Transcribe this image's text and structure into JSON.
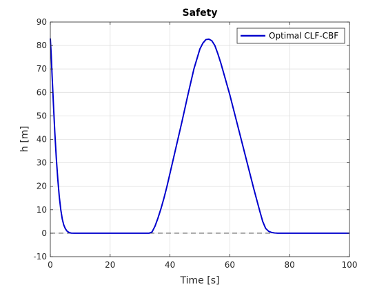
{
  "chart_data": {
    "type": "line",
    "title": "Safety",
    "xlabel": "Time [s]",
    "ylabel": "h [m]",
    "xlim": [
      0,
      100
    ],
    "ylim": [
      -10,
      90
    ],
    "xticks": [
      0,
      20,
      40,
      60,
      80,
      100
    ],
    "yticks": [
      -10,
      0,
      10,
      20,
      30,
      40,
      50,
      60,
      70,
      80,
      90
    ],
    "grid": true,
    "legend_position": "top-right",
    "reference_line": {
      "y": 0,
      "style": "dashed",
      "color": "#404040"
    },
    "series": [
      {
        "name": "Optimal CLF-CBF",
        "color": "#0000cd",
        "x": [
          0,
          0.3,
          0.6,
          1,
          1.5,
          2,
          2.5,
          3,
          3.5,
          4,
          4.5,
          5,
          5.5,
          6,
          6.5,
          7,
          8,
          9,
          10,
          15,
          20,
          25,
          30,
          33,
          34,
          35,
          36,
          37,
          38,
          39,
          40,
          42,
          44,
          46,
          48,
          50,
          51,
          52,
          53,
          54,
          55,
          56,
          57,
          58,
          60,
          62,
          64,
          66,
          68,
          70,
          71,
          72,
          73,
          74,
          75,
          76,
          78,
          80,
          85,
          90,
          95,
          100
        ],
        "y": [
          83,
          76,
          67,
          56,
          43,
          32,
          23,
          15.5,
          10,
          6,
          3.5,
          2,
          1,
          0.5,
          0.2,
          0.05,
          0,
          0,
          0,
          0,
          0,
          0,
          0,
          0,
          0.5,
          3,
          6.5,
          10.5,
          15,
          20,
          25.5,
          36.5,
          47.5,
          59,
          70,
          78.5,
          81,
          82.5,
          82.7,
          82,
          80,
          76.5,
          72.5,
          68,
          59,
          49,
          39,
          29,
          19,
          9.5,
          5,
          2,
          0.8,
          0.3,
          0.1,
          0,
          0,
          0,
          0,
          0,
          0,
          0
        ]
      }
    ]
  }
}
